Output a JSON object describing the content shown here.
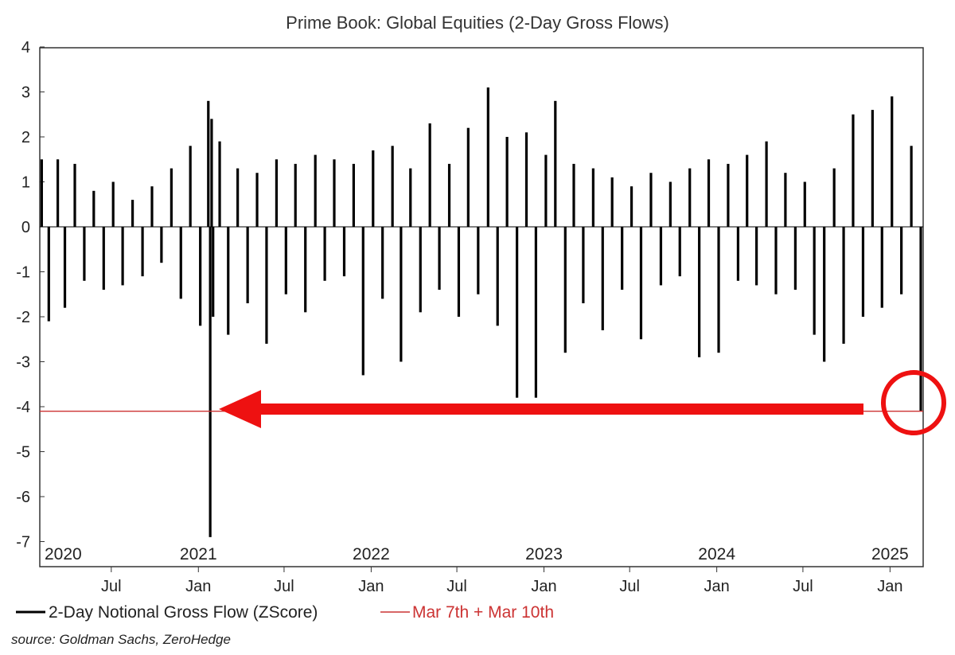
{
  "chart_data": {
    "type": "bar",
    "title": "Prime Book: Global Equities (2-Day Gross Flows)",
    "xlabel": "",
    "ylabel": "",
    "ylim": [
      -7.5,
      4
    ],
    "y_ticks": [
      "4",
      "3",
      "2",
      "1",
      "0",
      "-1",
      "-2",
      "-3",
      "-4",
      "-5",
      "-6",
      "-7"
    ],
    "x_range": [
      "2020-02-01",
      "2025-03-12"
    ],
    "year_labels": [
      "2020",
      "2021",
      "2022",
      "2023",
      "2024",
      "2025"
    ],
    "month_labels": [
      "Jul",
      "Jan",
      "Jul",
      "Jan",
      "Jul",
      "Jan",
      "Jul",
      "Jan",
      "Jul",
      "Jan"
    ],
    "grid": false,
    "legend_position": "bottom-left",
    "series": [
      {
        "name": "2-Day Notional Gross Flow (ZScore)",
        "color": "#000000",
        "x": [
          "2020-02-05",
          "2020-02-20",
          "2020-03-10",
          "2020-03-25",
          "2020-04-15",
          "2020-05-05",
          "2020-05-25",
          "2020-06-15",
          "2020-07-05",
          "2020-07-25",
          "2020-08-15",
          "2020-09-05",
          "2020-09-25",
          "2020-10-15",
          "2020-11-05",
          "2020-11-25",
          "2020-12-15",
          "2021-01-05",
          "2021-01-22",
          "2021-01-26",
          "2021-01-29",
          "2021-02-01",
          "2021-02-15",
          "2021-03-05",
          "2021-03-25",
          "2021-04-15",
          "2021-05-05",
          "2021-05-25",
          "2021-06-15",
          "2021-07-05",
          "2021-07-25",
          "2021-08-15",
          "2021-09-05",
          "2021-09-25",
          "2021-10-15",
          "2021-11-05",
          "2021-11-25",
          "2021-12-15",
          "2022-01-05",
          "2022-01-25",
          "2022-02-15",
          "2022-03-05",
          "2022-03-25",
          "2022-04-15",
          "2022-05-05",
          "2022-05-25",
          "2022-06-15",
          "2022-07-05",
          "2022-07-25",
          "2022-08-15",
          "2022-09-05",
          "2022-09-25",
          "2022-10-15",
          "2022-11-05",
          "2022-11-25",
          "2022-12-15",
          "2023-01-05",
          "2023-01-25",
          "2023-02-15",
          "2023-03-05",
          "2023-03-25",
          "2023-04-15",
          "2023-05-05",
          "2023-05-25",
          "2023-06-15",
          "2023-07-05",
          "2023-07-25",
          "2023-08-15",
          "2023-09-05",
          "2023-09-25",
          "2023-10-15",
          "2023-11-05",
          "2023-11-25",
          "2023-12-15",
          "2024-01-05",
          "2024-01-25",
          "2024-02-15",
          "2024-03-05",
          "2024-03-25",
          "2024-04-15",
          "2024-05-05",
          "2024-05-25",
          "2024-06-15",
          "2024-07-05",
          "2024-07-25",
          "2024-08-15",
          "2024-09-05",
          "2024-09-25",
          "2024-10-15",
          "2024-11-05",
          "2024-11-25",
          "2024-12-15",
          "2025-01-05",
          "2025-01-25",
          "2025-02-15",
          "2025-03-07"
        ],
        "values": [
          1.5,
          -2.1,
          1.5,
          -1.8,
          1.4,
          -1.2,
          0.8,
          -1.4,
          1.0,
          -1.3,
          0.6,
          -1.1,
          0.9,
          -0.8,
          1.3,
          -1.6,
          1.8,
          -2.2,
          2.8,
          -6.9,
          2.4,
          -2.0,
          1.9,
          -2.4,
          1.3,
          -1.7,
          1.2,
          -2.6,
          1.5,
          -1.5,
          1.4,
          -1.9,
          1.6,
          -1.2,
          1.5,
          -1.1,
          1.4,
          -3.3,
          1.7,
          -1.6,
          1.8,
          -3.0,
          1.3,
          -1.9,
          2.3,
          -1.4,
          1.4,
          -2.0,
          2.2,
          -1.5,
          3.1,
          -2.2,
          2.0,
          -3.8,
          2.1,
          -3.8,
          1.6,
          2.8,
          -2.8,
          1.4,
          -1.7,
          1.3,
          -2.3,
          1.1,
          -1.4,
          0.9,
          -2.5,
          1.2,
          -1.3,
          1.0,
          -1.1,
          1.3,
          -2.9,
          1.5,
          -2.8,
          1.4,
          -1.2,
          1.6,
          -1.3,
          1.9,
          -1.5,
          1.2,
          -1.4,
          1.0,
          -2.4,
          -3.0,
          1.3,
          -2.6,
          2.5,
          -2.0,
          2.6,
          -1.8,
          2.9,
          -1.5,
          1.8,
          -4.1
        ]
      },
      {
        "name": "Mar 7th + Mar 10th",
        "color": "#cc3333",
        "value": -4.1
      }
    ]
  },
  "legend": {
    "series1_label": "2-Day Notional Gross Flow (ZScore)",
    "series2_label": "Mar 7th + Mar 10th"
  },
  "source": "source: Goldman Sachs, ZeroHedge",
  "colors": {
    "bars": "#000000",
    "reference_line": "#cc3333",
    "annotation": "#ee1111"
  }
}
